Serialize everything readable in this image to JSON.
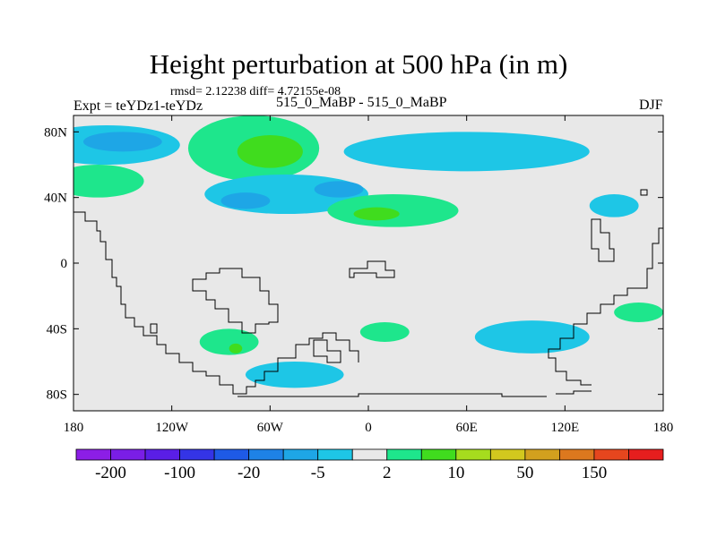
{
  "chart_data": {
    "type": "heatmap",
    "title": "Height perturbation at 500 hPa (in m)",
    "stats": "rmsd= 2.12238 diff= 4.72155e-08",
    "left_label": "Expt = teYDz1-teYDz",
    "center_label": "515_0_MaBP - 515_0_MaBP",
    "right_label": "DJF",
    "x_ticks": [
      {
        "lon": -180,
        "label": "180"
      },
      {
        "lon": -120,
        "label": "120W"
      },
      {
        "lon": -60,
        "label": "60W"
      },
      {
        "lon": 0,
        "label": "0"
      },
      {
        "lon": 60,
        "label": "60E"
      },
      {
        "lon": 120,
        "label": "120E"
      },
      {
        "lon": 180,
        "label": "180"
      }
    ],
    "y_ticks": [
      {
        "lat": 80,
        "label": "80N"
      },
      {
        "lat": 40,
        "label": "40N"
      },
      {
        "lat": 0,
        "label": "0"
      },
      {
        "lat": -40,
        "label": "40S"
      },
      {
        "lat": -80,
        "label": "80S"
      }
    ],
    "xlim": [
      -180,
      180
    ],
    "ylim": [
      -90,
      90
    ],
    "colorbar": {
      "colors": [
        "#8c1ee6",
        "#7a1ee6",
        "#5a1ee6",
        "#3434e6",
        "#1e5ae6",
        "#1e82e6",
        "#1ea6e6",
        "#1ec6e6",
        "#e8e8e8",
        "#1ee68c",
        "#40dc1e",
        "#a6dc1e",
        "#d2c81e",
        "#d2a01e",
        "#dc781e",
        "#e6461e",
        "#e61e1e"
      ],
      "labels": [
        {
          "index": 1,
          "text": "-200"
        },
        {
          "index": 3,
          "text": "-100"
        },
        {
          "index": 5,
          "text": "-20"
        },
        {
          "index": 7,
          "text": "-5"
        },
        {
          "index": 9,
          "text": "2"
        },
        {
          "index": 11,
          "text": "10"
        },
        {
          "index": 13,
          "text": "50"
        },
        {
          "index": 15,
          "text": "150"
        }
      ]
    },
    "regions": [
      {
        "level": "-2 to 2",
        "color": "#1ec6e6",
        "lon": -160,
        "lat": 72,
        "rlon": 45,
        "rlat": 12
      },
      {
        "level": "-5 to -2",
        "color": "#1ea6e6",
        "lon": -150,
        "lat": 74,
        "rlon": 24,
        "rlat": 6
      },
      {
        "level": "2 to 10",
        "color": "#1ee68c",
        "lon": -70,
        "lat": 70,
        "rlon": 40,
        "rlat": 20
      },
      {
        "level": "10 to 50",
        "color": "#40dc1e",
        "lon": -60,
        "lat": 68,
        "rlon": 20,
        "rlat": 10
      },
      {
        "level": "2 to 10",
        "color": "#1ee68c",
        "lon": -165,
        "lat": 50,
        "rlon": 28,
        "rlat": 10
      },
      {
        "level": "-2 to 2",
        "color": "#1ec6e6",
        "lon": -50,
        "lat": 42,
        "rlon": 50,
        "rlat": 12
      },
      {
        "level": "-5 to -2",
        "color": "#1ea6e6",
        "lon": -75,
        "lat": 38,
        "rlon": 15,
        "rlat": 5
      },
      {
        "level": "-5 to -2",
        "color": "#1ea6e6",
        "lon": -18,
        "lat": 45,
        "rlon": 15,
        "rlat": 5
      },
      {
        "level": "-2 to 2",
        "color": "#1ec6e6",
        "lon": 60,
        "lat": 68,
        "rlon": 75,
        "rlat": 12
      },
      {
        "level": "2 to 10",
        "color": "#1ee68c",
        "lon": 15,
        "lat": 32,
        "rlon": 40,
        "rlat": 10
      },
      {
        "level": "10 to 50",
        "color": "#40dc1e",
        "lon": 5,
        "lat": 30,
        "rlon": 14,
        "rlat": 4
      },
      {
        "level": "-2 to 2",
        "color": "#1ec6e6",
        "lon": 150,
        "lat": 35,
        "rlon": 15,
        "rlat": 7
      },
      {
        "level": "-2 to 2",
        "color": "#1ec6e6",
        "lon": 100,
        "lat": -45,
        "rlon": 35,
        "rlat": 10
      },
      {
        "level": "2 to 10",
        "color": "#1ee68c",
        "lon": -85,
        "lat": -48,
        "rlon": 18,
        "rlat": 8
      },
      {
        "level": "10 to 50",
        "color": "#40dc1e",
        "lon": -81,
        "lat": -52,
        "rlon": 4,
        "rlat": 3
      },
      {
        "level": "-2 to 2",
        "color": "#1ec6e6",
        "lon": -45,
        "lat": -68,
        "rlon": 30,
        "rlat": 8
      },
      {
        "level": "2 to 10",
        "color": "#1ee68c",
        "lon": 10,
        "lat": -42,
        "rlon": 15,
        "rlat": 6
      },
      {
        "level": "2 to 10",
        "color": "#1ee68c",
        "lon": 165,
        "lat": -30,
        "rlon": 15,
        "rlat": 6
      }
    ]
  }
}
